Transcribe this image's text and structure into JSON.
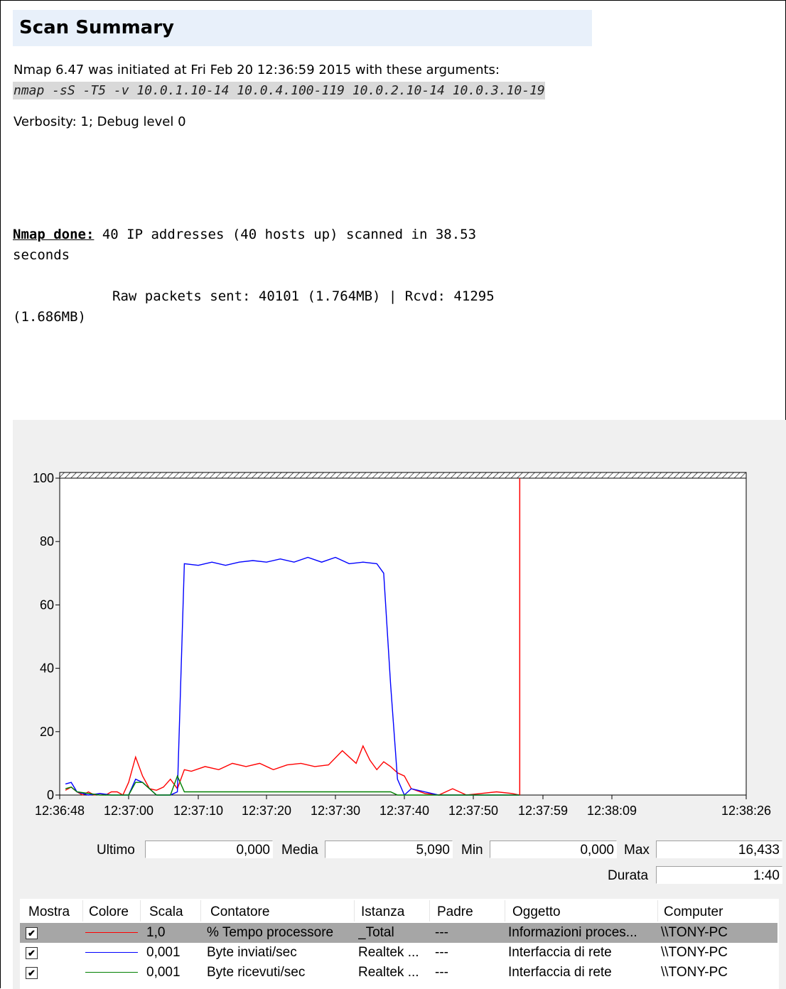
{
  "report": {
    "title": "Scan Summary",
    "initiated_line": "Nmap 6.47 was initiated at Fri Feb 20 12:36:59 2015 with these arguments:",
    "arguments": "nmap -sS -T5 -v 10.0.1.10-14 10.0.4.100-119 10.0.2.10-14 10.0.3.10-19",
    "verbosity": "Verbosity: 1; Debug level 0",
    "done_label": "Nmap done:",
    "done_text": " 40 IP addresses (40 hosts up) scanned in 38.53",
    "done_text_cont": "seconds",
    "packets_text": "Raw packets sent: 40101 (1.764MB) | Rcvd: 41295",
    "packets_text_cont": "(1.686MB)"
  },
  "perfmon": {
    "stats": {
      "last_label": "Ultimo",
      "last_value": "0,000",
      "avg_label": "Media",
      "avg_value": "5,090",
      "min_label": "Min",
      "min_value": "0,000",
      "max_label": "Max",
      "max_value": "16,433",
      "duration_label": "Durata",
      "duration_value": "1:40"
    },
    "legend_headers": [
      "Mostra",
      "Colore",
      "Scala",
      "Contatore",
      "Istanza",
      "Padre",
      "Oggetto",
      "Computer"
    ],
    "counters": [
      {
        "color": "#ff0000",
        "scale": "1,0",
        "counter": "% Tempo processore",
        "instance": "_Total",
        "parent": "---",
        "object": "Informazioni proces...",
        "computer": "\\\\TONY-PC",
        "selected": true
      },
      {
        "color": "#0000ff",
        "scale": "0,001",
        "counter": "Byte inviati/sec",
        "instance": "Realtek ...",
        "parent": "---",
        "object": "Interfaccia di rete",
        "computer": "\\\\TONY-PC",
        "selected": false
      },
      {
        "color": "#008000",
        "scale": "0,001",
        "counter": "Byte ricevuti/sec",
        "instance": "Realtek ...",
        "parent": "---",
        "object": "Interfaccia di rete",
        "computer": "\\\\TONY-PC",
        "selected": false
      }
    ]
  },
  "chart_data": {
    "type": "line",
    "x_ticks": [
      "12:36:48",
      "12:37:00",
      "12:37:10",
      "12:37:20",
      "12:37:30",
      "12:37:40",
      "12:37:50",
      "12:37:59",
      "12:38:09",
      "12:38:26"
    ],
    "y_ticks": [
      "0",
      "20",
      "40",
      "60",
      "80",
      "100"
    ],
    "ylim": [
      0,
      100
    ],
    "grid": false,
    "current_time_marker": "12:37:56",
    "series": [
      {
        "color": "#ff0000",
        "x": [
          "12:36:49",
          "12:36:50",
          "12:36:51",
          "12:36:52",
          "12:36:53",
          "12:36:54",
          "12:36:55",
          "12:36:56",
          "12:36:57",
          "12:36:58",
          "12:36:59",
          "12:37:00",
          "12:37:01",
          "12:37:02",
          "12:37:03",
          "12:37:04",
          "12:37:05",
          "12:37:06",
          "12:37:07",
          "12:37:08",
          "12:37:09",
          "12:37:11",
          "12:37:13",
          "12:37:15",
          "12:37:17",
          "12:37:19",
          "12:37:21",
          "12:37:23",
          "12:37:25",
          "12:37:27",
          "12:37:29",
          "12:37:31",
          "12:37:33",
          "12:37:34",
          "12:37:35",
          "12:37:36",
          "12:37:37",
          "12:37:38",
          "12:37:39",
          "12:37:40",
          "12:37:41",
          "12:37:43",
          "12:37:45",
          "12:37:47",
          "12:37:49",
          "12:37:51",
          "12:37:53",
          "12:37:55",
          "12:37:56"
        ],
        "values": [
          1.5,
          2.5,
          1,
          0,
          1,
          0,
          0.5,
          0,
          1,
          1,
          0,
          4,
          12,
          6,
          2,
          1.5,
          2.5,
          5,
          2,
          8,
          7.5,
          9,
          8,
          10,
          9,
          10,
          8,
          9.5,
          10,
          9,
          9.5,
          14,
          10,
          15.5,
          11,
          8,
          10.5,
          9,
          7,
          6,
          2,
          0.5,
          0,
          2,
          0,
          0.5,
          1,
          0.5,
          0
        ]
      },
      {
        "color": "#0000ff",
        "x": [
          "12:36:49",
          "12:36:50",
          "12:36:51",
          "12:36:53",
          "12:36:55",
          "12:36:57",
          "12:36:59",
          "12:37:00",
          "12:37:01",
          "12:37:02",
          "12:37:04",
          "12:37:06",
          "12:37:07",
          "12:37:08",
          "12:37:10",
          "12:37:12",
          "12:37:14",
          "12:37:16",
          "12:37:18",
          "12:37:20",
          "12:37:22",
          "12:37:24",
          "12:37:26",
          "12:37:28",
          "12:37:30",
          "12:37:32",
          "12:37:34",
          "12:37:36",
          "12:37:37",
          "12:37:38",
          "12:37:39",
          "12:37:40",
          "12:37:41",
          "12:37:45",
          "12:37:50",
          "12:37:56"
        ],
        "values": [
          3.5,
          4,
          1,
          0,
          0.5,
          0,
          0,
          0,
          5,
          4,
          0,
          0,
          1,
          73,
          72.5,
          73.5,
          72.5,
          73.5,
          74,
          73.5,
          74.5,
          73.5,
          75,
          73.5,
          75,
          73,
          73.5,
          73,
          70,
          35,
          5,
          0,
          2,
          0,
          0,
          0
        ]
      },
      {
        "color": "#008000",
        "x": [
          "12:36:49",
          "12:36:50",
          "12:36:51",
          "12:36:55",
          "12:37:00",
          "12:37:01",
          "12:37:02",
          "12:37:04",
          "12:37:06",
          "12:37:07",
          "12:37:08",
          "12:37:09",
          "12:37:15",
          "12:37:20",
          "12:37:25",
          "12:37:30",
          "12:37:35",
          "12:37:38",
          "12:37:39",
          "12:37:45",
          "12:37:56"
        ],
        "values": [
          2,
          2.5,
          1,
          0,
          0,
          4,
          4,
          0,
          0,
          6,
          1,
          1,
          1,
          1,
          1,
          1,
          1,
          1,
          0,
          0,
          0
        ]
      }
    ]
  }
}
